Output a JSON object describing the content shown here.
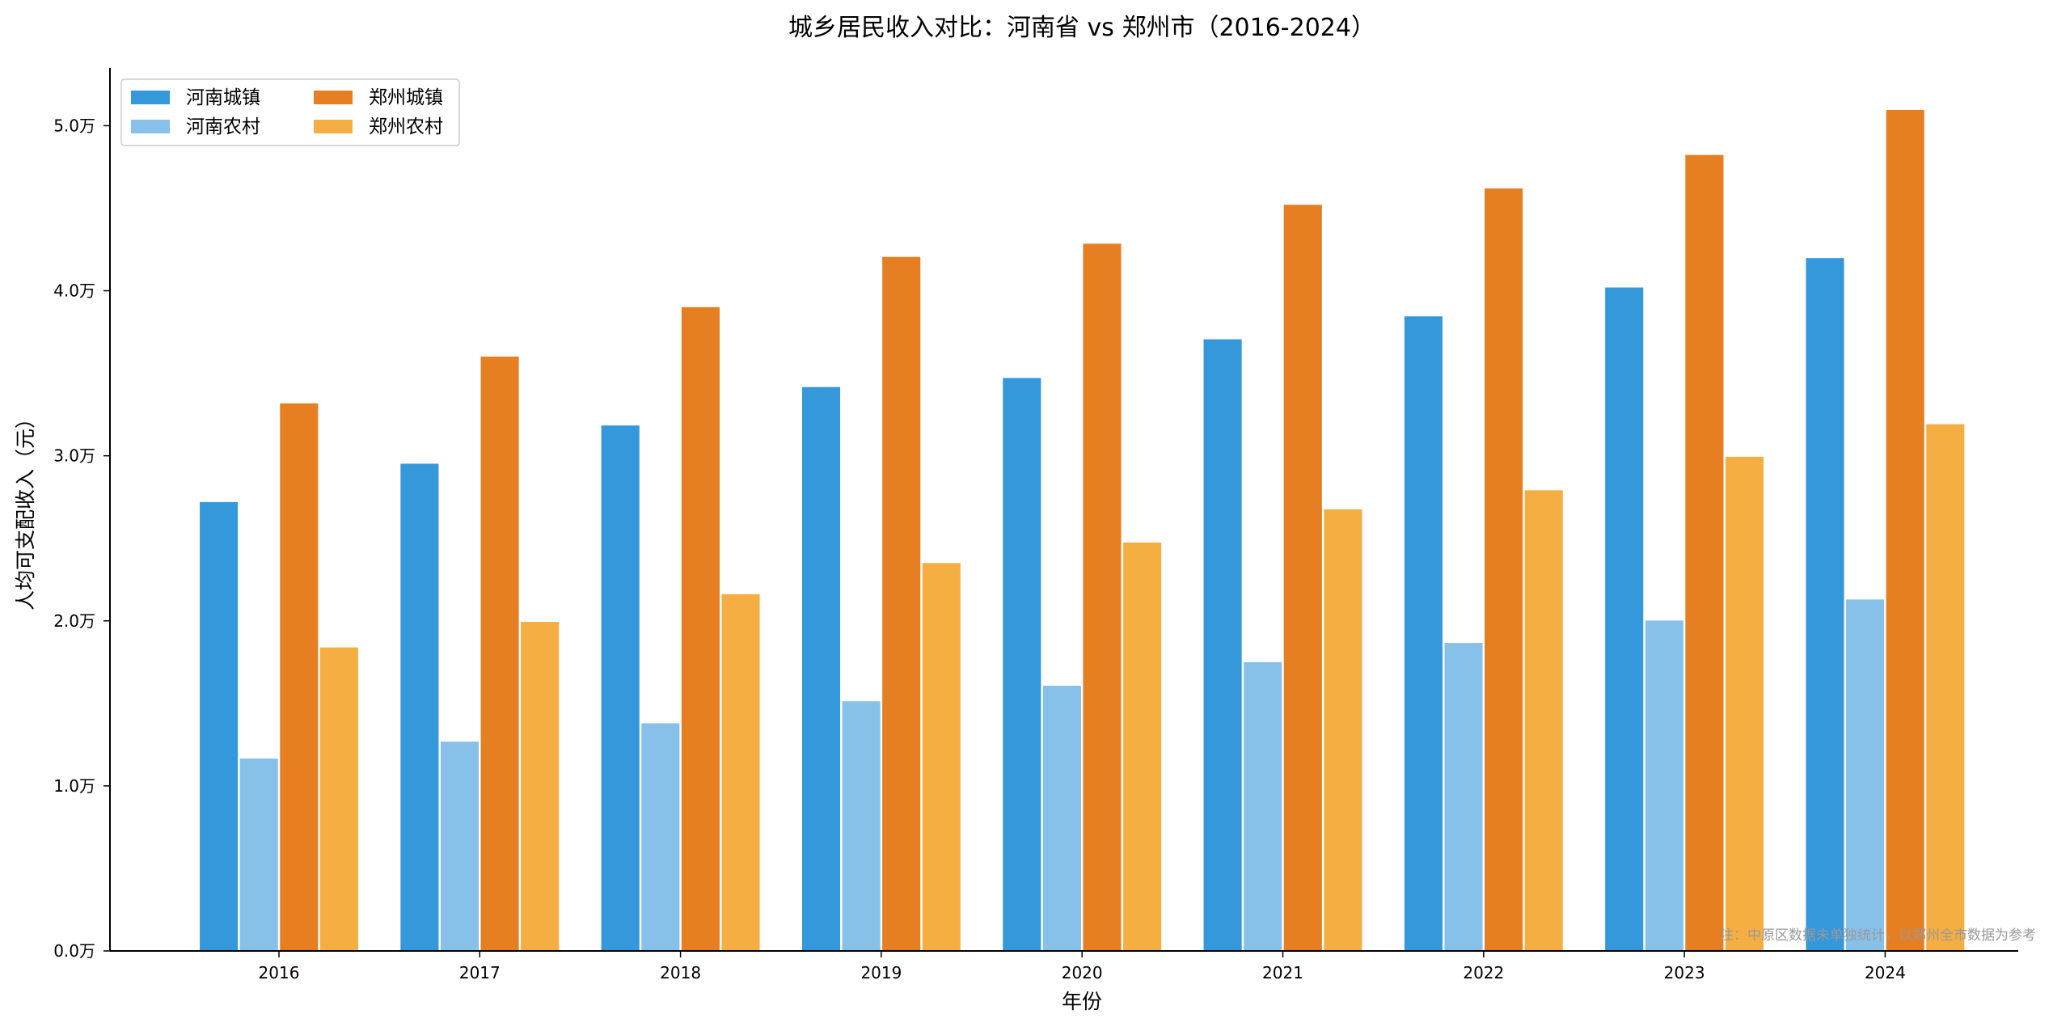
{
  "chart_data": {
    "type": "bar",
    "title": "城乡居民收入对比：河南省 vs 郑州市（2016-2024）",
    "xlabel": "年份",
    "ylabel": "人均可支配收入（元）",
    "categories": [
      "2016",
      "2017",
      "2018",
      "2019",
      "2020",
      "2021",
      "2022",
      "2023",
      "2024"
    ],
    "series": [
      {
        "name": "河南城镇",
        "color": "#3498db",
        "values": [
          27233,
          29558,
          31874,
          34201,
          34750,
          37095,
          38484,
          40234,
          42016
        ]
      },
      {
        "name": "河南农村",
        "color": "#87c1ea",
        "values": [
          11697,
          12719,
          13831,
          15164,
          16108,
          17533,
          18697,
          20053,
          21330
        ]
      },
      {
        "name": "郑州城镇",
        "color": "#e67e22",
        "values": [
          33214,
          36050,
          39042,
          42087,
          42887,
          45246,
          46234,
          48261,
          50990
        ]
      },
      {
        "name": "郑州农村",
        "color": "#f5ae42",
        "values": [
          18426,
          19974,
          21652,
          23536,
          24783,
          26790,
          27946,
          29978,
          31950
        ]
      }
    ],
    "yticks": [
      {
        "value": 0,
        "label": "0.0万"
      },
      {
        "value": 10000,
        "label": "1.0万"
      },
      {
        "value": 20000,
        "label": "2.0万"
      },
      {
        "value": 30000,
        "label": "3.0万"
      },
      {
        "value": 40000,
        "label": "4.0万"
      },
      {
        "value": 50000,
        "label": "5.0万"
      }
    ],
    "ylim": [
      0,
      53500
    ],
    "grid": false,
    "legend_position": "top-left",
    "legend_columns": 2,
    "annotation": "注：中原区数据未单独统计，以郑州全市数据为参考"
  }
}
